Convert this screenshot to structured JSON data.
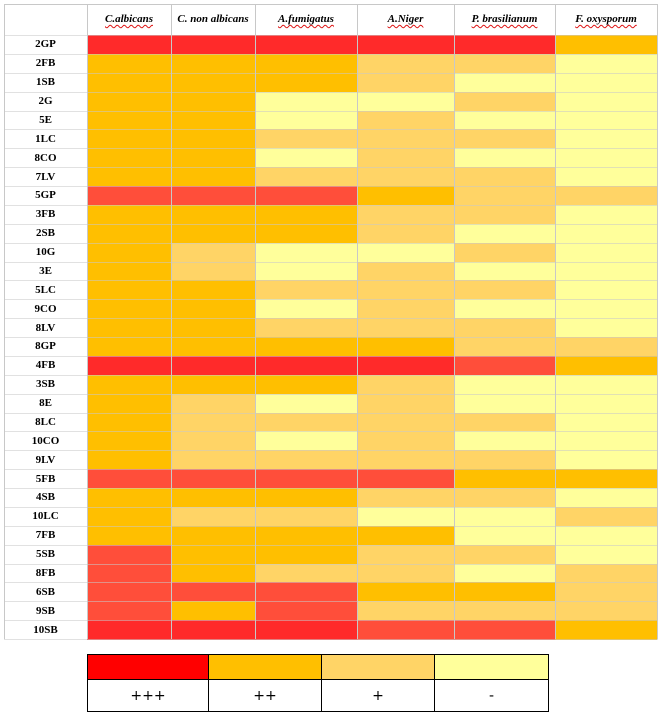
{
  "colors": {
    "+++": "#ff2a2a",
    "+++b": "#ff4e3a",
    "++": "#ffbf00",
    "+": "#ffd466",
    "-": "#ffff9b"
  },
  "columns": [
    "C.albicans",
    "C. non albicans",
    "A.fumigatus",
    "A.Niger",
    "P. brasilianum",
    "F. oxysporum"
  ],
  "rows": [
    "2GP",
    "2FB",
    "1SB",
    "2G",
    "5E",
    "1LC",
    "8CO",
    "7LV",
    "5GP",
    "3FB",
    "2SB",
    "10G",
    "3E",
    "5LC",
    "9CO",
    "8LV",
    "8GP",
    "4FB",
    "3SB",
    "8E",
    "8LC",
    "10CO",
    "9LV",
    "5FB",
    "4SB",
    "10LC",
    "7FB",
    "5SB",
    "8FB",
    "6SB",
    "9SB",
    "10SB"
  ],
  "table": [
    [
      "+++",
      "+++",
      "+++",
      "+++",
      "+++",
      "++"
    ],
    [
      "++",
      "++",
      "++",
      "+",
      "+",
      "-"
    ],
    [
      "++",
      "++",
      "++",
      "+",
      "-",
      "-"
    ],
    [
      "++",
      "++",
      "-",
      "-",
      "+",
      "-"
    ],
    [
      "++",
      "++",
      "-",
      "+",
      "-",
      "-"
    ],
    [
      "++",
      "++",
      "+",
      "+",
      "+",
      "-"
    ],
    [
      "++",
      "++",
      "-",
      "+",
      "-",
      "-"
    ],
    [
      "++",
      "++",
      "+",
      "+",
      "+",
      "-"
    ],
    [
      "+++b",
      "+++b",
      "+++b",
      "++",
      "+",
      "+"
    ],
    [
      "++",
      "++",
      "++",
      "+",
      "+",
      "-"
    ],
    [
      "++",
      "++",
      "++",
      "+",
      "-",
      "-"
    ],
    [
      "++",
      "+",
      "-",
      "-",
      "+",
      "-"
    ],
    [
      "++",
      "+",
      "-",
      "+",
      "-",
      "-"
    ],
    [
      "++",
      "++",
      "+",
      "+",
      "+",
      "-"
    ],
    [
      "++",
      "++",
      "-",
      "+",
      "-",
      "-"
    ],
    [
      "++",
      "++",
      "+",
      "+",
      "+",
      "-"
    ],
    [
      "++",
      "++",
      "++",
      "++",
      "+",
      "+"
    ],
    [
      "+++",
      "+++",
      "+++",
      "+++",
      "+++b",
      "++"
    ],
    [
      "++",
      "++",
      "++",
      "+",
      "-",
      "-"
    ],
    [
      "++",
      "+",
      "-",
      "+",
      "-",
      "-"
    ],
    [
      "++",
      "+",
      "+",
      "+",
      "+",
      "-"
    ],
    [
      "++",
      "+",
      "-",
      "+",
      "-",
      "-"
    ],
    [
      "++",
      "+",
      "+",
      "+",
      "+",
      "-"
    ],
    [
      "+++b",
      "+++b",
      "+++b",
      "+++b",
      "++",
      "++"
    ],
    [
      "++",
      "++",
      "++",
      "+",
      "+",
      "-"
    ],
    [
      "++",
      "+",
      "+",
      "-",
      "-",
      "+"
    ],
    [
      "++",
      "++",
      "++",
      "++",
      "-",
      "-"
    ],
    [
      "+++b",
      "++",
      "++",
      "+",
      "+",
      "-"
    ],
    [
      "+++b",
      "++",
      "+",
      "+",
      "-",
      "+"
    ],
    [
      "+++b",
      "+++b",
      "+++b",
      "++",
      "++",
      "+"
    ],
    [
      "+++b",
      "++",
      "+++b",
      "+",
      "+",
      "+"
    ],
    [
      "+++",
      "+++",
      "+++",
      "+++b",
      "+++b",
      "++"
    ]
  ],
  "legend": [
    {
      "label": "+++",
      "color": "#ff0000"
    },
    {
      "label": "++",
      "color": "#ffbf00"
    },
    {
      "label": "+",
      "color": "#ffd466"
    },
    {
      "label": "-",
      "color": "#ffff9b"
    }
  ]
}
